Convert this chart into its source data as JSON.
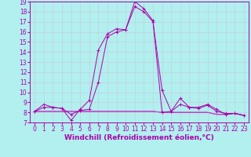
{
  "title": "",
  "xlabel": "Windchill (Refroidissement éolien,°C)",
  "ylabel": "",
  "background_color": "#b2efef",
  "line_color": "#aa00aa",
  "xlim": [
    -0.5,
    23.5
  ],
  "ylim": [
    7,
    19
  ],
  "yticks": [
    7,
    8,
    9,
    10,
    11,
    12,
    13,
    14,
    15,
    16,
    17,
    18,
    19
  ],
  "xticks": [
    0,
    1,
    2,
    3,
    4,
    5,
    6,
    7,
    8,
    9,
    10,
    11,
    12,
    13,
    14,
    15,
    16,
    17,
    18,
    19,
    20,
    21,
    22,
    23
  ],
  "series1_x": [
    0,
    1,
    2,
    3,
    4,
    5,
    6,
    7,
    8,
    9,
    10,
    11,
    12,
    13,
    14,
    15,
    16,
    17,
    18,
    19,
    20,
    21,
    22,
    23
  ],
  "series1_y": [
    8.1,
    8.8,
    8.5,
    8.4,
    7.2,
    8.3,
    9.2,
    14.2,
    15.8,
    16.3,
    16.2,
    19.0,
    18.3,
    17.1,
    8.0,
    8.1,
    9.4,
    8.5,
    8.5,
    8.8,
    8.3,
    7.8,
    7.9,
    7.7
  ],
  "series2_x": [
    0,
    1,
    2,
    3,
    4,
    5,
    6,
    7,
    8,
    9,
    10,
    11,
    12,
    13,
    14,
    15,
    16,
    17,
    18,
    19,
    20,
    21,
    22,
    23
  ],
  "series2_y": [
    8.1,
    8.5,
    8.5,
    8.4,
    7.8,
    8.2,
    8.3,
    11.0,
    15.5,
    16.0,
    16.2,
    18.5,
    18.0,
    17.0,
    10.2,
    8.1,
    8.8,
    8.5,
    8.4,
    8.7,
    8.1,
    7.9,
    7.9,
    7.7
  ],
  "series3_x": [
    0,
    1,
    2,
    3,
    4,
    5,
    6,
    7,
    8,
    9,
    10,
    11,
    12,
    13,
    14,
    15,
    16,
    17,
    18,
    19,
    20,
    21,
    22,
    23
  ],
  "series3_y": [
    8.1,
    8.1,
    8.1,
    8.1,
    8.1,
    8.1,
    8.1,
    8.1,
    8.1,
    8.1,
    8.1,
    8.1,
    8.1,
    8.1,
    8.0,
    8.0,
    8.0,
    8.0,
    8.0,
    8.0,
    7.8,
    7.8,
    7.9,
    7.7
  ],
  "series4_x": [
    0,
    1,
    2,
    3,
    4,
    5,
    6,
    7,
    8,
    9,
    10,
    11,
    12,
    13,
    14,
    15,
    16,
    17,
    18,
    19,
    20,
    21,
    22,
    23
  ],
  "series4_y": [
    8.1,
    8.1,
    8.1,
    8.1,
    8.1,
    8.1,
    8.1,
    8.1,
    8.1,
    8.1,
    8.1,
    8.1,
    8.1,
    8.1,
    8.0,
    8.0,
    8.0,
    8.0,
    8.0,
    8.0,
    7.8,
    7.8,
    7.9,
    7.7
  ],
  "grid_color": "#c8c8d8",
  "tick_fontsize": 5.5,
  "xlabel_fontsize": 6.5
}
